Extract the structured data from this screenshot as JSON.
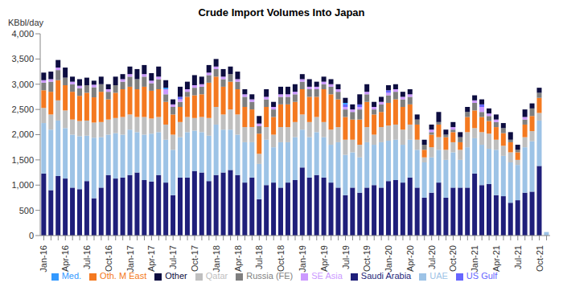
{
  "chart_data": {
    "type": "bar",
    "title": "Crude Import Volumes Into Japan",
    "y_label": "KBbl/day",
    "stacked": true,
    "legend": "bottom",
    "grid": false,
    "categories": [
      "Jan-16",
      null,
      null,
      "Apr-16",
      null,
      null,
      "Jul-16",
      null,
      null,
      "Oct-16",
      null,
      null,
      "Jan-17",
      null,
      null,
      "Apr-17",
      null,
      null,
      "Jul-17",
      null,
      null,
      "Oct-17",
      null,
      null,
      "Jan-18",
      null,
      null,
      "Apr-18",
      null,
      null,
      "Jul-18",
      null,
      null,
      "Oct-18",
      null,
      null,
      "Jan-19",
      null,
      null,
      "Apr-19",
      null,
      null,
      "Jul-19",
      null,
      null,
      "Oct-19",
      null,
      null,
      "Jan-20",
      null,
      null,
      "Apr-20",
      null,
      null,
      "Jul-20",
      null,
      null,
      "Oct-20",
      null,
      null,
      "Jan-21",
      null,
      null,
      "Apr-21",
      null,
      null,
      "Jul-21",
      null,
      null,
      "Oct-21",
      null
    ],
    "ylim": [
      0,
      4000
    ],
    "yticks": [
      0,
      500,
      {
        "value": 1000,
        "label": "1,000"
      },
      {
        "value": 1500,
        "label": "1,500"
      },
      {
        "value": 2000,
        "label": "2,000"
      },
      {
        "value": 2500,
        "label": "2,500"
      },
      {
        "value": 3000,
        "label": "3,000"
      },
      {
        "value": 3500,
        "label": "3,500"
      },
      {
        "value": 4000,
        "label": "4,000"
      }
    ],
    "series": [
      {
        "name": "Saudi Arabia",
        "color": "#1f1f7a",
        "values": [
          1230,
          900,
          1180,
          1130,
          950,
          920,
          1080,
          740,
          950,
          1200,
          1130,
          1150,
          1200,
          1250,
          1100,
          1070,
          1200,
          1050,
          800,
          1150,
          1150,
          1280,
          1250,
          1080,
          1200,
          1250,
          1300,
          1200,
          1050,
          1150,
          720,
          1000,
          1050,
          950,
          1050,
          1100,
          1350,
          1150,
          1200,
          1150,
          1050,
          950,
          800,
          950,
          850,
          950,
          1000,
          950,
          1080,
          1100,
          1050,
          1150,
          950,
          750,
          850,
          1050,
          750,
          950,
          950,
          950,
          1230,
          1000,
          1020,
          800,
          780,
          650,
          700,
          850,
          870,
          1380,
          0
        ]
      },
      {
        "name": "UAE",
        "color": "#9dc3e6",
        "values": [
          1000,
          1200,
          1100,
          1000,
          1050,
          1050,
          900,
          1200,
          1000,
          800,
          900,
          850,
          900,
          800,
          900,
          950,
          850,
          850,
          900,
          800,
          900,
          800,
          800,
          900,
          1000,
          850,
          800,
          800,
          800,
          700,
          700,
          900,
          700,
          900,
          800,
          850,
          750,
          800,
          850,
          800,
          750,
          900,
          800,
          700,
          700,
          900,
          800,
          900,
          800,
          800,
          750,
          750,
          750,
          700,
          700,
          650,
          750,
          700,
          550,
          800,
          700,
          800,
          700,
          900,
          800,
          800,
          700,
          900,
          1000,
          900,
          70
        ]
      },
      {
        "name": "Qatar",
        "color": "#bfbfbf",
        "values": [
          300,
          300,
          400,
          350,
          300,
          300,
          300,
          300,
          300,
          300,
          300,
          350,
          300,
          300,
          350,
          300,
          300,
          300,
          300,
          300,
          300,
          250,
          300,
          350,
          350,
          300,
          400,
          400,
          300,
          300,
          200,
          250,
          250,
          300,
          300,
          300,
          300,
          300,
          300,
          300,
          300,
          300,
          300,
          250,
          250,
          300,
          200,
          300,
          300,
          300,
          300,
          300,
          200,
          100,
          200,
          250,
          200,
          200,
          200,
          300,
          200,
          250,
          300,
          200,
          200,
          200,
          100,
          200,
          200,
          150,
          0
        ]
      },
      {
        "name": "Oth. M East",
        "color": "#f47920",
        "values": [
          350,
          450,
          400,
          500,
          550,
          500,
          550,
          500,
          600,
          400,
          500,
          550,
          550,
          550,
          600,
          550,
          550,
          450,
          400,
          300,
          400,
          450,
          450,
          700,
          600,
          550,
          550,
          500,
          400,
          350,
          400,
          400,
          350,
          450,
          450,
          400,
          500,
          500,
          400,
          650,
          700,
          550,
          450,
          400,
          500,
          500,
          400,
          300,
          450,
          500,
          450,
          400,
          300,
          150,
          250,
          250,
          250,
          200,
          150,
          300,
          350,
          300,
          250,
          250,
          250,
          200,
          150,
          250,
          300,
          300,
          0
        ]
      },
      {
        "name": "Russia (FE)",
        "color": "#7f7f7f",
        "values": [
          150,
          200,
          200,
          150,
          150,
          150,
          150,
          200,
          150,
          150,
          150,
          150,
          200,
          200,
          200,
          150,
          200,
          150,
          150,
          100,
          100,
          150,
          150,
          150,
          150,
          150,
          150,
          150,
          200,
          150,
          150,
          150,
          150,
          150,
          150,
          150,
          150,
          150,
          150,
          100,
          150,
          150,
          150,
          150,
          200,
          150,
          100,
          150,
          150,
          150,
          150,
          150,
          100,
          100,
          50,
          50,
          50,
          50,
          100,
          100,
          150,
          100,
          100,
          100,
          100,
          50,
          50,
          100,
          150,
          100,
          0
        ]
      },
      {
        "name": "SE Asia",
        "color": "#cc99ff",
        "values": [
          50,
          50,
          50,
          0,
          50,
          50,
          0,
          50,
          0,
          50,
          0,
          50,
          50,
          0,
          50,
          50,
          50,
          100,
          50,
          50,
          50,
          50,
          50,
          50,
          50,
          50,
          0,
          50,
          50,
          50,
          50,
          50,
          50,
          50,
          50,
          50,
          50,
          50,
          50,
          50,
          50,
          50,
          50,
          50,
          50,
          50,
          50,
          50,
          50,
          50,
          50,
          50,
          0,
          0,
          50,
          0,
          0,
          50,
          0,
          0,
          50,
          100,
          50,
          50,
          0,
          0,
          0,
          50,
          0,
          0,
          0
        ]
      },
      {
        "name": "US Gulf",
        "color": "#6666ff",
        "values": [
          0,
          0,
          0,
          0,
          0,
          0,
          0,
          0,
          0,
          0,
          0,
          0,
          0,
          0,
          0,
          0,
          0,
          0,
          0,
          50,
          0,
          0,
          0,
          0,
          0,
          0,
          0,
          0,
          0,
          0,
          0,
          0,
          0,
          0,
          0,
          0,
          0,
          0,
          0,
          0,
          0,
          0,
          50,
          0,
          50,
          0,
          0,
          0,
          50,
          0,
          0,
          0,
          0,
          0,
          0,
          0,
          0,
          0,
          0,
          0,
          0,
          50,
          0,
          0,
          0,
          0,
          0,
          0,
          0,
          0,
          0
        ]
      },
      {
        "name": "Med.",
        "color": "#3399ff",
        "values": [
          0,
          0,
          0,
          0,
          0,
          0,
          0,
          0,
          0,
          0,
          0,
          0,
          0,
          0,
          0,
          0,
          0,
          30,
          0,
          0,
          0,
          0,
          0,
          0,
          0,
          0,
          0,
          0,
          0,
          0,
          0,
          0,
          0,
          0,
          0,
          0,
          0,
          0,
          0,
          0,
          0,
          0,
          30,
          0,
          0,
          0,
          0,
          0,
          0,
          0,
          0,
          0,
          0,
          0,
          0,
          0,
          0,
          0,
          0,
          0,
          0,
          0,
          0,
          0,
          0,
          0,
          0,
          0,
          0,
          0,
          0
        ]
      },
      {
        "name": "Other",
        "color": "#0d0d40",
        "values": [
          150,
          150,
          150,
          200,
          100,
          130,
          150,
          80,
          150,
          100,
          170,
          100,
          150,
          200,
          180,
          150,
          200,
          150,
          100,
          200,
          150,
          200,
          150,
          150,
          150,
          150,
          150,
          150,
          100,
          100,
          150,
          150,
          100,
          150,
          150,
          150,
          100,
          150,
          100,
          100,
          100,
          100,
          100,
          100,
          200,
          150,
          100,
          100,
          100,
          100,
          100,
          100,
          100,
          100,
          100,
          200,
          100,
          100,
          100,
          100,
          100,
          100,
          100,
          100,
          100,
          150,
          100,
          150,
          100,
          100,
          0
        ]
      }
    ]
  }
}
